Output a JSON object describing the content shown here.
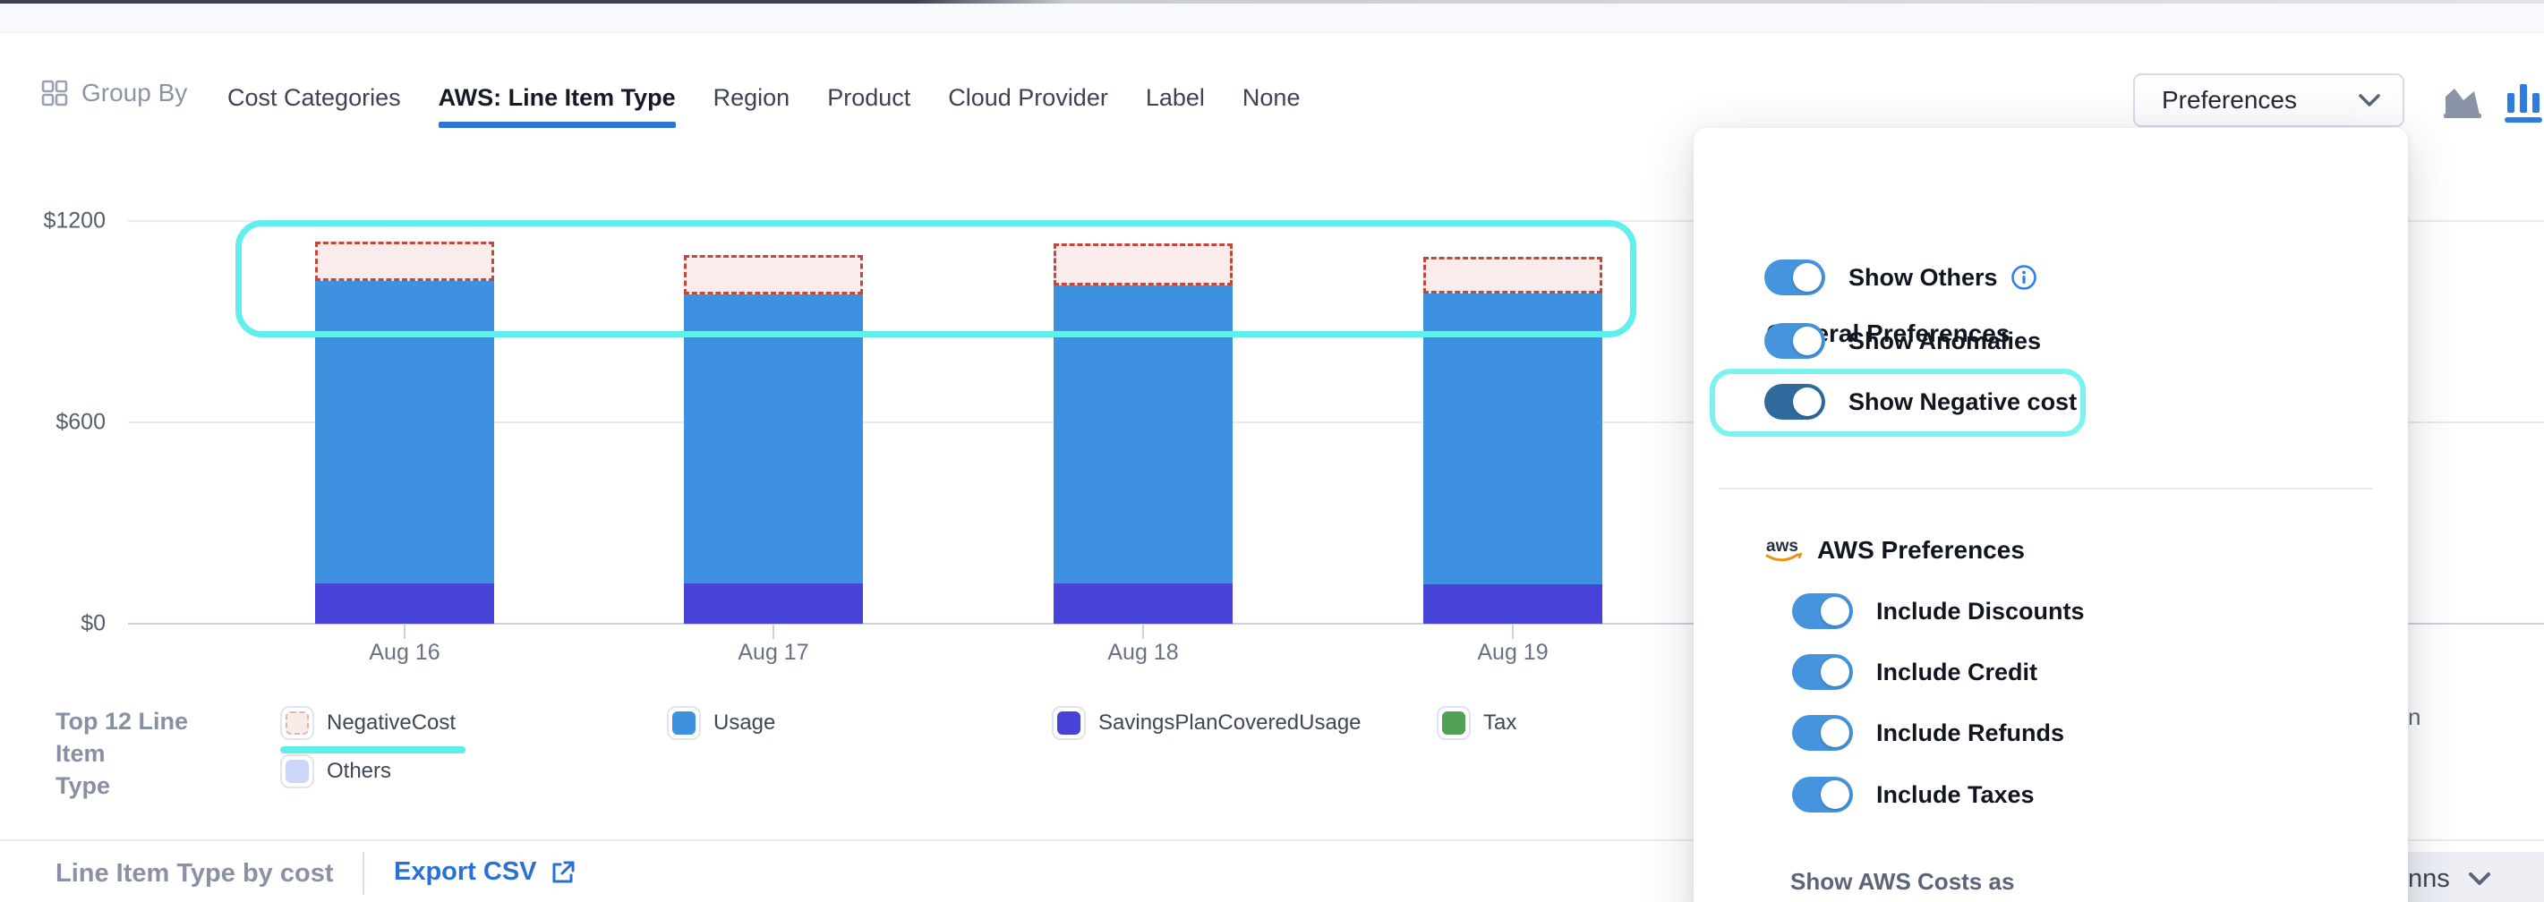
{
  "toolbar": {
    "group_by_label": "Group By",
    "tabs": [
      {
        "label": "Cost Categories",
        "active": false
      },
      {
        "label": "AWS: Line Item Type",
        "active": true
      },
      {
        "label": "Region",
        "active": false
      },
      {
        "label": "Product",
        "active": false
      },
      {
        "label": "Cloud Provider",
        "active": false
      },
      {
        "label": "Label",
        "active": false
      },
      {
        "label": "None",
        "active": false
      }
    ],
    "preferences_label": "Preferences"
  },
  "chart_data": {
    "type": "bar",
    "stacked": true,
    "title": "",
    "categories": [
      "Aug 16",
      "Aug 17",
      "Aug 18",
      "Aug 19"
    ],
    "series": [
      {
        "name": "SavingsPlanCoveredUsage",
        "values": [
          120,
          120,
          120,
          117
        ],
        "color": "#4743d9"
      },
      {
        "name": "Usage",
        "values": [
          901,
          861,
          888,
          867
        ],
        "color": "#3e90e0"
      },
      {
        "name": "NegativeCost",
        "values": [
          -117,
          -117,
          -125,
          -109
        ],
        "color": "#faeceb",
        "style": "dashed-outline"
      }
    ],
    "legend_only_series": [
      "Tax",
      "Others"
    ],
    "ylabel": "",
    "xlabel": "",
    "ylim": [
      0,
      1200
    ],
    "y_tick_labels": [
      "$1200",
      "$600",
      "$0"
    ],
    "y_tick_values": [
      1200,
      600,
      0
    ],
    "grid": true,
    "currency": "USD"
  },
  "legend": {
    "title_line1": "Top 12 Line Item",
    "title_line2": "Type",
    "items": [
      {
        "label": "NegativeCost",
        "color": "#f8ece9",
        "dashed": true,
        "underlined": true
      },
      {
        "label": "Usage",
        "color": "#3e90e0"
      },
      {
        "label": "SavingsPlanCoveredUsage",
        "color": "#4743d9"
      },
      {
        "label": "Tax",
        "color": "#52a159"
      },
      {
        "label": "Others",
        "color": "#ccd7f7"
      }
    ],
    "partial_label": "n"
  },
  "footer": {
    "title": "Line Item Type by cost",
    "export_label": "Export CSV",
    "columns_partial": "nns"
  },
  "preferences_panel": {
    "general_title": "General Preferences",
    "general_toggles": [
      {
        "label": "Show Others",
        "on": true,
        "info": true,
        "dark": false,
        "highlighted": false
      },
      {
        "label": "Show Anomalies",
        "on": true,
        "info": false,
        "dark": false,
        "highlighted": false
      },
      {
        "label": "Show Negative cost",
        "on": true,
        "info": false,
        "dark": true,
        "highlighted": true
      }
    ],
    "aws_title": "AWS Preferences",
    "aws_toggles": [
      {
        "label": "Include Discounts",
        "on": true
      },
      {
        "label": "Include Credit",
        "on": true
      },
      {
        "label": "Include Refunds",
        "on": true
      },
      {
        "label": "Include Taxes",
        "on": true
      }
    ],
    "footer_label": "Show AWS Costs as"
  },
  "colors": {
    "accent_blue": "#2e74d9",
    "toggle_on": "#4594dd",
    "toggle_on_dark": "#2f6b9d",
    "highlight_cyan": "#5ff0ed",
    "negative_dash": "#c2473d",
    "negative_fill": "#faeceb",
    "usage_blue": "#3e90e0",
    "savings_purple": "#4743d9",
    "tax_green": "#52a159",
    "others_lavender": "#ccd7f7",
    "export_link": "#2a6fd6"
  }
}
